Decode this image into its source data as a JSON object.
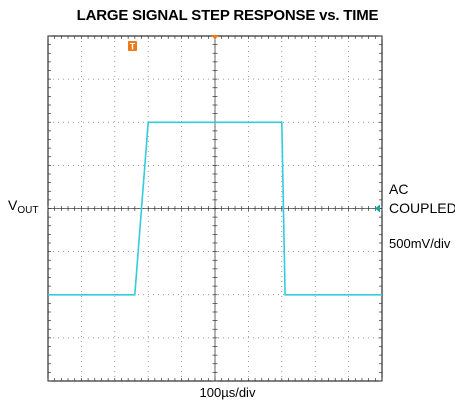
{
  "chart_data": {
    "type": "line",
    "title": "LARGE SIGNAL STEP RESPONSE vs. TIME",
    "y_axis_label": "V",
    "y_axis_label_sub": "OUT",
    "coupling": [
      "AC",
      "COUPLED"
    ],
    "volts_per_div": "500mV/div",
    "time_per_div": "100µs/div",
    "grid_divisions": {
      "x": 10,
      "y": 8
    },
    "grid": true,
    "trace_color": "#33ccdd",
    "marker_color": "#f07818",
    "ground_marker_color": "#1aa5a5",
    "trigger_marker": "T",
    "series": [
      {
        "x": [
          -500,
          -240,
          -200,
          -180,
          0,
          200,
          210,
          500
        ],
        "y": [
          -1000,
          -1000,
          1000,
          1000,
          1000,
          1000,
          -1000,
          -1000
        ],
        "x_unit": "µs",
        "y_unit": "mV"
      }
    ]
  }
}
